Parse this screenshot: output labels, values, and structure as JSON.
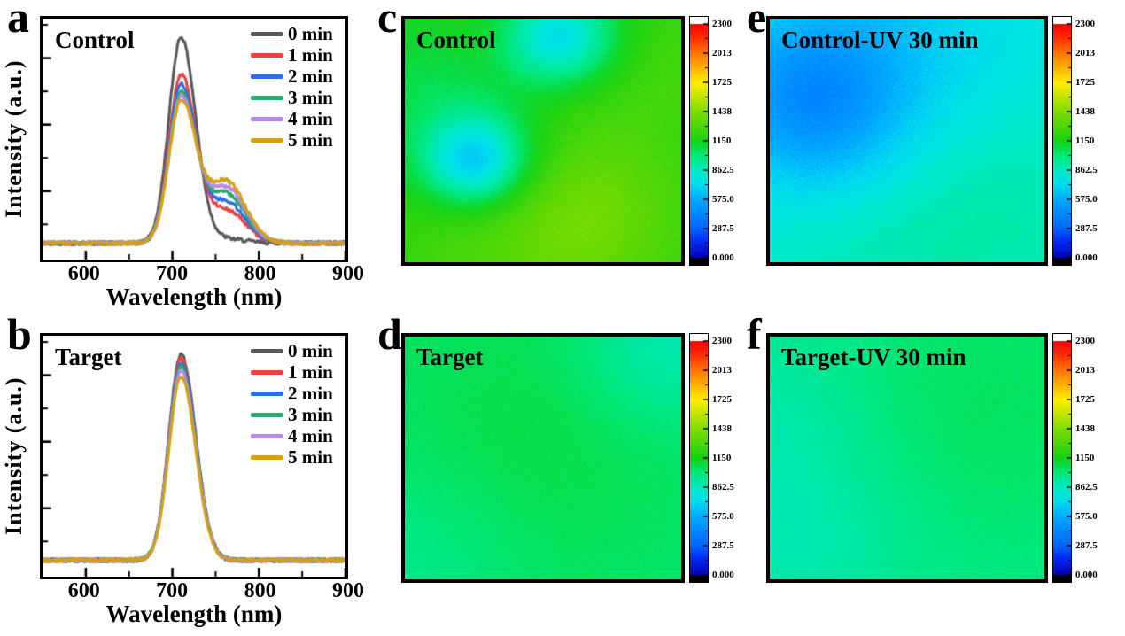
{
  "figure": {
    "background": "#ffffff",
    "text_color": "#000000",
    "colormap_stops": [
      [
        0.0,
        "#0000b0"
      ],
      [
        0.08,
        "#0030ff"
      ],
      [
        0.125,
        "#0064ff"
      ],
      [
        0.25,
        "#00aaff"
      ],
      [
        0.32,
        "#00e0ee"
      ],
      [
        0.375,
        "#00eac4"
      ],
      [
        0.44,
        "#00e878"
      ],
      [
        0.5,
        "#14d214"
      ],
      [
        0.625,
        "#7edc00"
      ],
      [
        0.75,
        "#ffee00"
      ],
      [
        0.81,
        "#ffb400"
      ],
      [
        0.875,
        "#ff7800"
      ],
      [
        0.94,
        "#ff3000"
      ],
      [
        1.0,
        "#fe0000"
      ]
    ]
  },
  "chart_data": [
    {
      "panel": "a",
      "type": "line",
      "title": "Control",
      "xlabel": "Wavelength (nm)",
      "ylabel": "Intensity (a.u.)",
      "xlim": [
        550,
        900
      ],
      "xticks": [
        600,
        700,
        800,
        900
      ],
      "xtick_minor": [
        650,
        750,
        850
      ],
      "ylim": [
        -0.05,
        1.12
      ],
      "grid": false,
      "legend_position": "top-right",
      "baseline": 0.03,
      "noise_amplitude": 0.009,
      "peak": {
        "center_nm": 710,
        "sigma_left_nm": 14,
        "sigma_right_nm": 17
      },
      "shoulder": {
        "center_nm": 762,
        "sigma_nm": 22
      },
      "series": [
        {
          "label": "0 min",
          "color": "#595959",
          "peak_height": 1.0,
          "shoulder_height": 0.02
        },
        {
          "label": "1 min",
          "color": "#ee4043",
          "peak_height": 0.81,
          "shoulder_height": 0.16
        },
        {
          "label": "2 min",
          "color": "#2e6ede",
          "peak_height": 0.76,
          "shoulder_height": 0.2
        },
        {
          "label": "3 min",
          "color": "#2fa871",
          "peak_height": 0.72,
          "shoulder_height": 0.24
        },
        {
          "label": "4 min",
          "color": "#b78ae6",
          "peak_height": 0.7,
          "shoulder_height": 0.27
        },
        {
          "label": "5 min",
          "color": "#d4a014",
          "peak_height": 0.68,
          "shoulder_height": 0.3
        }
      ]
    },
    {
      "panel": "b",
      "type": "line",
      "title": "Target",
      "xlabel": "Wavelength (nm)",
      "ylabel": "Intensity (a.u.)",
      "xlim": [
        550,
        900
      ],
      "xticks": [
        600,
        700,
        800,
        900
      ],
      "xtick_minor": [
        650,
        750,
        850
      ],
      "ylim": [
        -0.05,
        1.12
      ],
      "grid": false,
      "legend_position": "top-right",
      "baseline": 0.03,
      "noise_amplitude": 0.009,
      "peak": {
        "center_nm": 710,
        "sigma_left_nm": 14,
        "sigma_right_nm": 17
      },
      "shoulder": {
        "center_nm": 762,
        "sigma_nm": 22
      },
      "series": [
        {
          "label": "0 min",
          "color": "#595959",
          "peak_height": 1.0,
          "shoulder_height": 0.0
        },
        {
          "label": "1 min",
          "color": "#ee4043",
          "peak_height": 0.98,
          "shoulder_height": 0.0
        },
        {
          "label": "2 min",
          "color": "#2e6ede",
          "peak_height": 0.96,
          "shoulder_height": 0.0
        },
        {
          "label": "3 min",
          "color": "#2fa871",
          "peak_height": 0.94,
          "shoulder_height": 0.0
        },
        {
          "label": "4 min",
          "color": "#b78ae6",
          "peak_height": 0.92,
          "shoulder_height": 0.0
        },
        {
          "label": "5 min",
          "color": "#d4a014",
          "peak_height": 0.89,
          "shoulder_height": 0.0
        }
      ]
    },
    {
      "panel": "c",
      "type": "heatmap",
      "title": "Control",
      "vmin": 0,
      "vmax": 2300,
      "colorbar_ticks": [
        "2300",
        "2013",
        "1725",
        "1438",
        "1150",
        "862.5",
        "575.0",
        "287.5",
        "0.000"
      ],
      "base_value": 1180,
      "noise_amplitude": 46,
      "features": [
        {
          "x": 0.55,
          "y": 0.07,
          "r": 0.13,
          "dv": -420
        },
        {
          "x": 0.75,
          "y": 0.1,
          "r": 0.18,
          "dv": -120
        },
        {
          "x": 0.25,
          "y": 0.58,
          "r": 0.12,
          "dv": -450
        },
        {
          "x": 0.32,
          "y": 0.52,
          "r": 0.22,
          "dv": -150
        },
        {
          "x": 0.62,
          "y": 0.83,
          "r": 0.28,
          "dv": 230
        },
        {
          "x": 0.9,
          "y": 0.13,
          "r": 0.2,
          "dv": 130
        },
        {
          "x": 0.13,
          "y": 0.93,
          "r": 0.2,
          "dv": 60
        },
        {
          "x": 0.05,
          "y": 0.25,
          "r": 0.22,
          "dv": -90
        },
        {
          "x": 0.55,
          "y": 0.35,
          "r": 0.3,
          "dv": 60
        }
      ]
    },
    {
      "panel": "d",
      "type": "heatmap",
      "title": "Target",
      "vmin": 0,
      "vmax": 2300,
      "colorbar_ticks": [
        "2300",
        "2013",
        "1725",
        "1438",
        "1150",
        "862.5",
        "575.0",
        "287.5",
        "0.000"
      ],
      "base_value": 1020,
      "noise_amplitude": 36,
      "features": [
        {
          "x": 0.95,
          "y": 0.04,
          "r": 0.22,
          "dv": -140
        },
        {
          "x": 0.55,
          "y": 0.25,
          "r": 0.45,
          "dv": 45
        },
        {
          "x": 0.05,
          "y": 0.92,
          "r": 0.28,
          "dv": -60
        },
        {
          "x": 0.35,
          "y": 0.75,
          "r": 0.4,
          "dv": 25
        }
      ]
    },
    {
      "panel": "e",
      "type": "heatmap",
      "title": "Control-UV 30 min",
      "vmin": 0,
      "vmax": 2300,
      "colorbar_ticks": [
        "2300",
        "2013",
        "1725",
        "1438",
        "1150",
        "862.5",
        "575.0",
        "287.5",
        "0.000"
      ],
      "base_value": 840,
      "noise_amplitude": 50,
      "features": [
        {
          "x": 0.13,
          "y": 0.28,
          "r": 0.22,
          "dv": -230
        },
        {
          "x": 0.2,
          "y": 0.5,
          "r": 0.25,
          "dv": -140
        },
        {
          "x": 0.45,
          "y": 0.1,
          "r": 0.3,
          "dv": -110
        },
        {
          "x": 0.5,
          "y": 0.0,
          "r": 0.9,
          "dv": -50
        },
        {
          "x": 0.8,
          "y": 0.8,
          "r": 0.35,
          "dv": 100
        },
        {
          "x": 0.25,
          "y": 0.92,
          "r": 0.3,
          "dv": 60
        }
      ]
    },
    {
      "panel": "f",
      "type": "heatmap",
      "title": "Target-UV 30 min",
      "vmin": 0,
      "vmax": 2300,
      "colorbar_ticks": [
        "2300",
        "2013",
        "1725",
        "1438",
        "1150",
        "862.5",
        "575.0",
        "287.5",
        "0.000"
      ],
      "base_value": 980,
      "noise_amplitude": 38,
      "features": [
        {
          "x": 0.12,
          "y": 0.82,
          "r": 0.3,
          "dv": -90
        },
        {
          "x": 0.02,
          "y": 0.3,
          "r": 0.25,
          "dv": -60
        },
        {
          "x": 0.85,
          "y": 0.2,
          "r": 0.4,
          "dv": 50
        },
        {
          "x": 0.55,
          "y": 0.55,
          "r": 0.45,
          "dv": 25
        }
      ]
    }
  ]
}
